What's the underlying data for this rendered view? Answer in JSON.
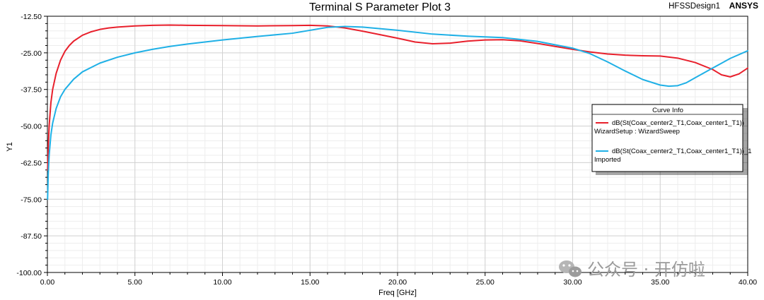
{
  "header": {
    "design_name": "HFSSDesign1",
    "brand": "ANSYS"
  },
  "watermark": {
    "text": "公众号 · 开仿啦",
    "icon": "wechat-icon"
  },
  "legend": {
    "title": "Curve Info",
    "entries": [
      {
        "line1": "dB(St(Coax_center2_T1,Coax_center1_T1))",
        "line2": "WizardSetup : WizardSweep",
        "color": "#e8202c"
      },
      {
        "line1": "dB(St(Coax_center2_T1,Coax_center1_T1))_1",
        "line2": "Imported",
        "color": "#1fb0e6"
      }
    ]
  },
  "chart_data": {
    "type": "line",
    "title": "Terminal S Parameter Plot 3",
    "xlabel": "Freq [GHz]",
    "ylabel": "Y1",
    "xlim": [
      0,
      40
    ],
    "ylim": [
      -100,
      -12.5
    ],
    "x_ticks": [
      "0.00",
      "5.00",
      "10.00",
      "15.00",
      "20.00",
      "25.00",
      "30.00",
      "35.00",
      "40.00"
    ],
    "y_ticks": [
      "-12.50",
      "-25.00",
      "-37.50",
      "-50.00",
      "-62.50",
      "-75.00",
      "-87.50",
      "-100.00"
    ],
    "grid": true,
    "legend_position": "right",
    "series": [
      {
        "name": "dB(St(Coax_center2_T1,Coax_center1_T1))",
        "color": "#e8202c",
        "x": [
          0.01,
          0.05,
          0.1,
          0.2,
          0.3,
          0.5,
          0.75,
          1,
          1.25,
          1.5,
          2,
          2.5,
          3,
          3.5,
          4,
          5,
          6,
          7,
          8,
          10,
          12,
          14,
          15,
          16,
          17,
          18,
          19,
          20,
          21,
          22,
          23,
          24,
          25,
          26,
          27,
          28,
          29,
          30,
          31,
          32,
          33,
          34,
          35,
          36,
          37,
          38,
          38.5,
          39,
          39.5,
          40
        ],
        "y": [
          -65,
          -57,
          -50,
          -42,
          -37.5,
          -32,
          -27.5,
          -24.5,
          -22.5,
          -21,
          -19,
          -17.8,
          -17,
          -16.5,
          -16.2,
          -15.8,
          -15.6,
          -15.5,
          -15.6,
          -15.7,
          -15.8,
          -15.7,
          -15.6,
          -15.8,
          -16.5,
          -17.6,
          -18.8,
          -20,
          -21.3,
          -21.9,
          -21.7,
          -21,
          -20.6,
          -20.5,
          -20.9,
          -21.8,
          -22.8,
          -23.8,
          -24.7,
          -25.4,
          -25.8,
          -26,
          -26.1,
          -26.8,
          -28.3,
          -30.7,
          -32.5,
          -33.2,
          -32.2,
          -30.2
        ]
      },
      {
        "name": "dB(St(Coax_center2_T1,Coax_center1_T1))_1",
        "color": "#1fb0e6",
        "x": [
          0.01,
          0.05,
          0.1,
          0.2,
          0.3,
          0.5,
          0.75,
          1,
          1.5,
          2,
          3,
          4,
          5,
          6,
          7,
          8,
          10,
          12,
          14,
          16,
          17,
          18,
          20,
          22,
          24,
          26,
          28,
          30,
          31,
          32,
          33,
          34,
          35,
          35.5,
          36,
          36.5,
          37,
          38,
          39,
          40
        ],
        "y": [
          -75,
          -66,
          -60,
          -53,
          -49,
          -44,
          -40,
          -37.5,
          -34,
          -31.5,
          -28.5,
          -26.5,
          -25,
          -23.8,
          -22.8,
          -22,
          -20.6,
          -19.4,
          -18.3,
          -16.3,
          -16,
          -16.2,
          -17.3,
          -18.6,
          -19.3,
          -19.8,
          -21.1,
          -23.4,
          -25.3,
          -28.1,
          -31.2,
          -34.1,
          -36,
          -36.4,
          -36.2,
          -35.2,
          -33.5,
          -30.2,
          -26.9,
          -24.3
        ]
      }
    ]
  }
}
